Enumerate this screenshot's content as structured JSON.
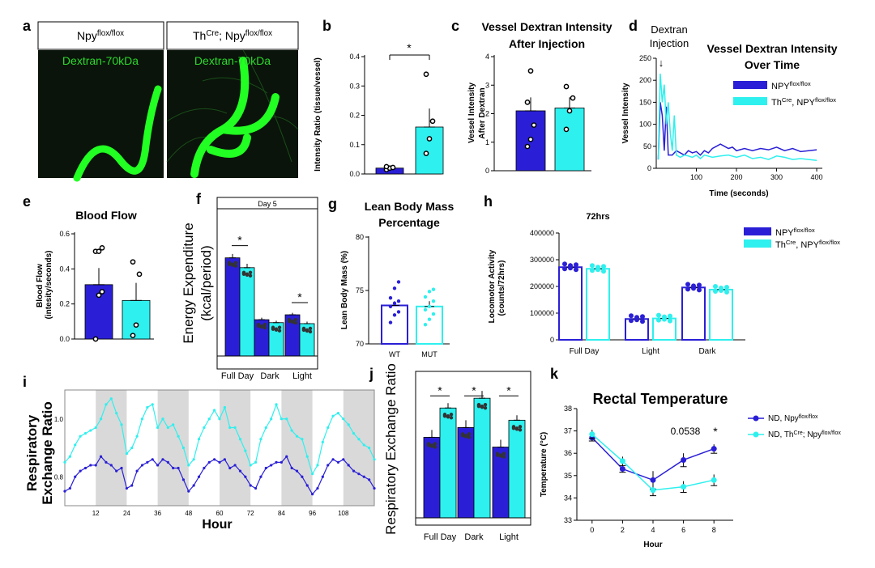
{
  "colors": {
    "npy": "#2a1fd6",
    "th": "#2ef0ee",
    "microscopy_bg": "#0a140a",
    "dextran": "#22ff22",
    "shade": "#d9d9d9",
    "sig": "#000000"
  },
  "panels": {
    "a": {
      "letter": "a",
      "label_left_base": "Npy",
      "label_left_sup": "flox/flox",
      "label_right_pre": "Th",
      "label_right_sup1": "Cre",
      "label_right_mid": "; Npy",
      "label_right_sup2": "flox/flox",
      "image_text": "Dextran-70kDa"
    },
    "b": {
      "letter": "b"
    },
    "c": {
      "letter": "c"
    },
    "d": {
      "letter": "d"
    },
    "e": {
      "letter": "e"
    },
    "f": {
      "letter": "f"
    },
    "g": {
      "letter": "g"
    },
    "h": {
      "letter": "h"
    },
    "i": {
      "letter": "i"
    },
    "j": {
      "letter": "j"
    },
    "k": {
      "letter": "k"
    }
  },
  "chart_data": [
    {
      "id": "b",
      "type": "bar",
      "categories": [
        "Npy flox/flox",
        "ThCre; Npy flox/flox"
      ],
      "values": [
        0.02,
        0.16
      ],
      "errors": [
        0.005,
        0.063
      ],
      "points": [
        [
          0.015,
          0.02,
          0.022,
          0.025
        ],
        [
          0.07,
          0.12,
          0.18,
          0.34
        ]
      ],
      "ylabel": "Intensity Ratio (tissue/vessel)",
      "ylim": [
        0,
        0.4
      ],
      "yticks": [
        "0.0",
        "0.1",
        "0.2",
        "0.3",
        "0.4"
      ],
      "sig": "*"
    },
    {
      "id": "c",
      "type": "bar",
      "title": "Vessel Dextran Intensity After Injection",
      "categories": [
        "Npy flox/flox",
        "ThCre; Npy flox/flox"
      ],
      "values": [
        2.1,
        2.2
      ],
      "errors": [
        0.47,
        0.37
      ],
      "points": [
        [
          0.85,
          1.1,
          1.6,
          2.4,
          3.5
        ],
        [
          1.45,
          2.1,
          2.55,
          2.95
        ]
      ],
      "ylabel": "Vessel Intensity After Dextran",
      "ylim": [
        0,
        4
      ],
      "yticks": [
        "0",
        "1",
        "2",
        "3",
        "4"
      ]
    },
    {
      "id": "d",
      "type": "line",
      "title": "Vessel Dextran Intensity Over Time",
      "annotation": "Dextran Injection",
      "annotation_arrow": "↓",
      "xlabel": "Time (seconds)",
      "ylabel": "Vessel Intensity",
      "xlim": [
        0,
        410
      ],
      "ylim": [
        0,
        250
      ],
      "xticks": [
        "100",
        "200",
        "300",
        "400"
      ],
      "yticks": [
        "0",
        "50",
        "100",
        "150",
        "200",
        "250"
      ],
      "series": [
        {
          "name": "NPY flox/flox",
          "x": [
            5,
            10,
            15,
            20,
            25,
            30,
            40,
            50,
            60,
            70,
            80,
            90,
            100,
            110,
            120,
            130,
            140,
            150,
            160,
            170,
            180,
            190,
            200,
            220,
            240,
            260,
            280,
            300,
            320,
            340,
            360,
            380,
            400
          ],
          "y": [
            20,
            150,
            120,
            40,
            140,
            30,
            30,
            40,
            35,
            30,
            40,
            35,
            38,
            30,
            40,
            35,
            45,
            50,
            55,
            50,
            45,
            48,
            40,
            45,
            40,
            45,
            42,
            48,
            40,
            45,
            38,
            40,
            42
          ]
        },
        {
          "name": "ThCre, NPY flox/flox",
          "x": [
            5,
            10,
            15,
            20,
            25,
            30,
            35,
            40,
            45,
            50,
            60,
            70,
            80,
            90,
            100,
            110,
            120,
            140,
            160,
            180,
            200,
            220,
            240,
            260,
            280,
            300,
            320,
            340,
            360,
            380,
            400
          ],
          "y": [
            20,
            215,
            150,
            190,
            100,
            150,
            80,
            40,
            120,
            30,
            25,
            30,
            28,
            25,
            30,
            22,
            30,
            25,
            28,
            30,
            25,
            30,
            22,
            25,
            20,
            28,
            25,
            20,
            22,
            20,
            18
          ]
        }
      ],
      "legend": [
        {
          "base": "NPY",
          "sup": "flox/flox"
        },
        {
          "base": "Th",
          "sup": "Cre",
          "mid": ", NPY",
          "sup2": "flox/flox"
        }
      ]
    },
    {
      "id": "e",
      "type": "bar",
      "title": "Blood Flow",
      "categories": [
        "Npy flox/flox",
        "ThCre; Npy flox/flox"
      ],
      "values": [
        0.31,
        0.22
      ],
      "errors": [
        0.095,
        0.1
      ],
      "points": [
        [
          0.0,
          0.25,
          0.27,
          0.5,
          0.5,
          0.52
        ],
        [
          0.02,
          0.08,
          0.37,
          0.44
        ]
      ],
      "ylabel": "Blood Flow (intesity/seconds)",
      "ylim": [
        0,
        0.6
      ],
      "yticks": [
        "0.0",
        "0.2",
        "0.4",
        "0.6"
      ]
    },
    {
      "id": "f",
      "type": "bar",
      "header": "Day 5",
      "categories": [
        "Full Day",
        "Dark",
        "Light"
      ],
      "series": [
        {
          "name": "NPY flox/flox",
          "values": [
            1.0,
            0.37,
            0.42
          ],
          "errors": [
            0.04,
            0.02,
            0.02
          ]
        },
        {
          "name": "ThCre NPY flox/flox",
          "values": [
            0.9,
            0.34,
            0.33
          ],
          "errors": [
            0.04,
            0.02,
            0.02
          ]
        }
      ],
      "ylabel": "Energy Expenditure (kcal/period)",
      "ylim": [
        0,
        1.5
      ],
      "sig": [
        "*",
        "",
        "*"
      ]
    },
    {
      "id": "g",
      "type": "bar",
      "title": "Lean Body Mass Percentage",
      "categories": [
        "WT",
        "MUT"
      ],
      "values": [
        73.6,
        73.5
      ],
      "errors": [
        0.4,
        0.5
      ],
      "points": [
        [
          72.0,
          72.7,
          73.0,
          73.5,
          73.8,
          74.0,
          74.3,
          75.2,
          75.8
        ],
        [
          71.8,
          72.3,
          72.8,
          73.2,
          73.5,
          74.0,
          74.4,
          74.9,
          75.1
        ]
      ],
      "ylabel": "Lean Body Mass (%)",
      "ylim": [
        70,
        80
      ],
      "yticks": [
        "70",
        "75",
        "80"
      ]
    },
    {
      "id": "h",
      "type": "bar",
      "title": "72hrs",
      "categories": [
        "Full Day",
        "Light",
        "Dark"
      ],
      "series": [
        {
          "name": "NPY flox/flox",
          "values": [
            272000,
            78000,
            196000
          ],
          "errors": [
            15000,
            5000,
            10000
          ]
        },
        {
          "name": "ThCre, NPY flox/flox",
          "values": [
            266000,
            80000,
            188000
          ],
          "errors": [
            10000,
            4000,
            8000
          ]
        }
      ],
      "ylabel": "Locomotor Activity (counts/72hrs)",
      "ylim": [
        0,
        400000
      ],
      "yticks": [
        "0",
        "100000",
        "200000",
        "300000",
        "400000"
      ],
      "legend": [
        {
          "base": "NPY",
          "sup": "flox/flox"
        },
        {
          "base": "Th",
          "sup": "Cre",
          "mid": ", NPY",
          "sup2": "flox/flox"
        }
      ]
    },
    {
      "id": "i",
      "type": "line",
      "xlabel": "Hour",
      "ylabel": "Respiratory Exchange Ratio",
      "xlim": [
        0,
        120
      ],
      "ylim": [
        0.7,
        1.1
      ],
      "xticks": [
        "12",
        "24",
        "36",
        "48",
        "60",
        "72",
        "84",
        "96",
        "108"
      ],
      "yticks": [
        "0.8",
        "1.0"
      ],
      "shaded": [
        [
          12,
          24
        ],
        [
          36,
          48
        ],
        [
          60,
          72
        ],
        [
          84,
          96
        ],
        [
          108,
          120
        ]
      ],
      "series": [
        {
          "name": "NPY flox/flox",
          "x": [
            0,
            2,
            4,
            6,
            8,
            10,
            12,
            14,
            16,
            18,
            20,
            22,
            24,
            26,
            28,
            30,
            32,
            34,
            36,
            38,
            40,
            42,
            44,
            46,
            48,
            50,
            52,
            54,
            56,
            58,
            60,
            62,
            64,
            66,
            68,
            70,
            72,
            74,
            76,
            78,
            80,
            82,
            84,
            86,
            88,
            90,
            92,
            94,
            96,
            98,
            100,
            102,
            104,
            106,
            108,
            110,
            112,
            114,
            116,
            118,
            120
          ],
          "y": [
            0.75,
            0.76,
            0.8,
            0.82,
            0.83,
            0.84,
            0.84,
            0.87,
            0.85,
            0.84,
            0.82,
            0.83,
            0.76,
            0.77,
            0.82,
            0.84,
            0.85,
            0.86,
            0.84,
            0.86,
            0.85,
            0.83,
            0.83,
            0.79,
            0.75,
            0.77,
            0.8,
            0.83,
            0.85,
            0.86,
            0.85,
            0.86,
            0.83,
            0.84,
            0.82,
            0.8,
            0.77,
            0.76,
            0.8,
            0.83,
            0.84,
            0.85,
            0.85,
            0.87,
            0.83,
            0.82,
            0.8,
            0.77,
            0.74,
            0.76,
            0.8,
            0.84,
            0.86,
            0.85,
            0.86,
            0.84,
            0.82,
            0.81,
            0.8,
            0.79,
            0.76
          ]
        },
        {
          "name": "ThCre NPY flox/flox",
          "x": [
            0,
            2,
            4,
            6,
            8,
            10,
            12,
            14,
            16,
            18,
            20,
            22,
            24,
            26,
            28,
            30,
            32,
            34,
            36,
            38,
            40,
            42,
            44,
            46,
            48,
            50,
            52,
            54,
            56,
            58,
            60,
            62,
            64,
            66,
            68,
            70,
            72,
            74,
            76,
            78,
            80,
            82,
            84,
            86,
            88,
            90,
            92,
            94,
            96,
            98,
            100,
            102,
            104,
            106,
            108,
            110,
            112,
            114,
            116,
            118,
            120
          ],
          "y": [
            0.85,
            0.87,
            0.91,
            0.94,
            0.95,
            0.96,
            0.97,
            1.0,
            1.05,
            1.07,
            1.02,
            0.98,
            0.88,
            0.9,
            0.94,
            1.0,
            1.04,
            1.05,
            0.97,
            1.0,
            0.97,
            0.98,
            0.94,
            0.9,
            0.84,
            0.86,
            0.93,
            0.97,
            1.0,
            1.03,
            1.0,
            1.04,
            0.97,
            0.97,
            0.93,
            0.89,
            0.84,
            0.85,
            0.93,
            0.97,
            1.0,
            1.05,
            1.0,
            1.0,
            0.96,
            0.94,
            0.93,
            0.87,
            0.81,
            0.84,
            0.92,
            0.97,
            1.01,
            1.02,
            1.0,
            0.98,
            0.95,
            0.93,
            0.91,
            0.9,
            0.86
          ]
        }
      ]
    },
    {
      "id": "j",
      "type": "bar",
      "categories": [
        "Full Day",
        "Dark",
        "Light"
      ],
      "series": [
        {
          "name": "NPY flox/flox",
          "values": [
            0.83,
            0.87,
            0.79
          ],
          "errors": [
            0.03,
            0.03,
            0.03
          ]
        },
        {
          "name": "ThCre NPY flox/flox",
          "values": [
            0.95,
            0.99,
            0.9
          ],
          "errors": [
            0.02,
            0.03,
            0.02
          ]
        }
      ],
      "ylabel": "Respiratory Exchange Ratio",
      "ylim": [
        0.5,
        1.1
      ],
      "sig": [
        "*",
        "*",
        "*"
      ]
    },
    {
      "id": "k",
      "type": "line",
      "title": "Rectal Temperature",
      "xlabel": "Hour",
      "ylabel": "Temperature (°C)",
      "xlim": [
        -1,
        9
      ],
      "ylim": [
        33,
        38
      ],
      "xticks": [
        "0",
        "2",
        "4",
        "6",
        "8"
      ],
      "yticks": [
        "33",
        "34",
        "35",
        "36",
        "37",
        "38"
      ],
      "annotation": "0.0538",
      "sig": "*",
      "series": [
        {
          "name": "ND, Npy flox/flox",
          "x": [
            0,
            2,
            4,
            6,
            8
          ],
          "y": [
            36.7,
            35.3,
            34.8,
            35.7,
            36.2
          ],
          "errors": [
            0.15,
            0.15,
            0.4,
            0.3,
            0.2
          ]
        },
        {
          "name": "ND, ThCre; Npy flox/flox",
          "x": [
            0,
            2,
            4,
            6,
            8
          ],
          "y": [
            36.85,
            35.65,
            34.35,
            34.5,
            34.8
          ],
          "errors": [
            0.2,
            0.2,
            0.25,
            0.25,
            0.25
          ]
        }
      ],
      "legend": [
        {
          "base": "ND, Npy",
          "sup": "flox/flox"
        },
        {
          "base": "ND, Th",
          "sup": "Cre",
          "mid": "; Npy",
          "sup2": "flox/flox"
        }
      ]
    }
  ]
}
